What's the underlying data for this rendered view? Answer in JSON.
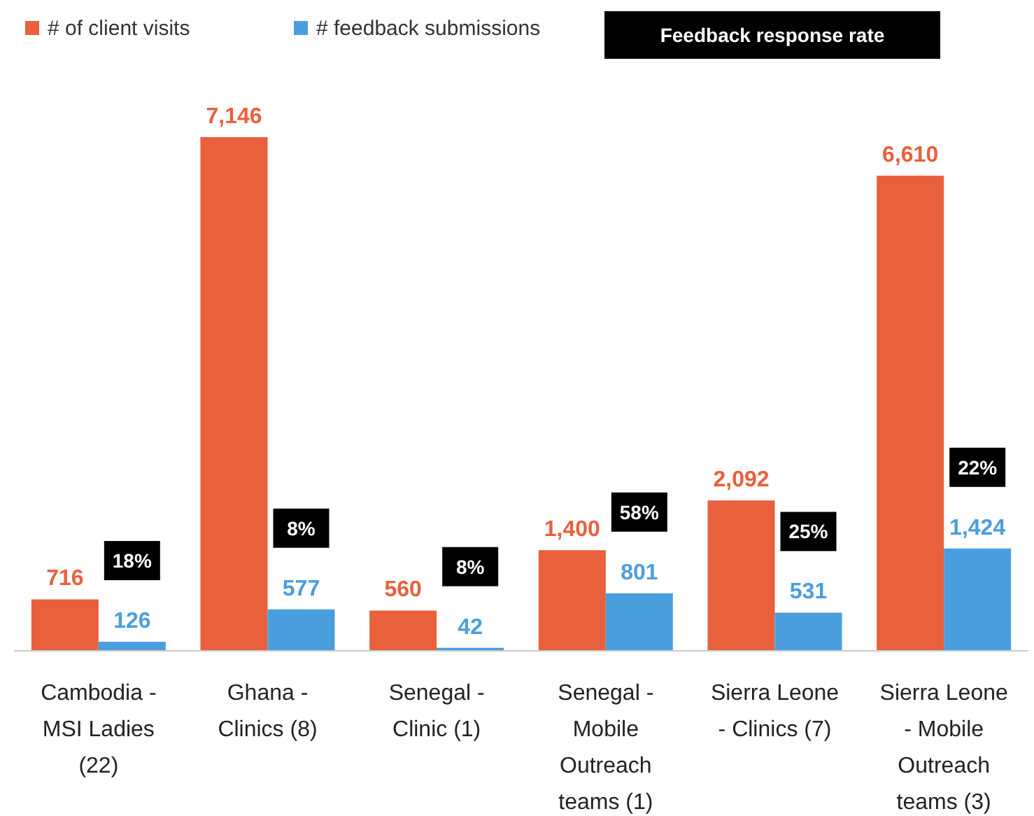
{
  "chart_data": {
    "type": "bar",
    "categories": [
      "Cambodia - MSI Ladies (22)",
      "Ghana - Clinics (8)",
      "Senegal - Clinic (1)",
      "Senegal - Mobile Outreach teams (1)",
      "Sierra Leone - Clinics (7)",
      "Sierra Leone - Mobile Outreach teams (3)"
    ],
    "series": [
      {
        "name": "# of client visits",
        "color": "#e8603c",
        "values": [
          716,
          7146,
          560,
          1400,
          2092,
          6610
        ],
        "value_labels": [
          "716",
          "7,146",
          "560",
          "1,400",
          "2,092",
          "6,610"
        ]
      },
      {
        "name": "# feedback submissions",
        "color": "#4a9ede",
        "values": [
          126,
          577,
          42,
          801,
          531,
          1424
        ],
        "value_labels": [
          "126",
          "577",
          "42",
          "801",
          "531",
          "1,424"
        ]
      }
    ],
    "legend": "top left",
    "annotations": [
      "Feedback response rate",
      "18%",
      "8%",
      "8%",
      "58%",
      "25%",
      "22%"
    ]
  }
}
